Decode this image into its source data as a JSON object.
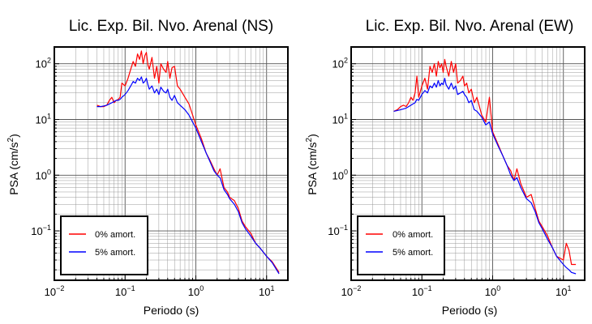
{
  "figure": {
    "description": "Two log-log pseudo-acceleration response spectra panels"
  },
  "chart_data": [
    {
      "type": "line",
      "title": "Lic. Exp. Bil. Nvo. Arenal (NS)",
      "xlabel": "Periodo (s)",
      "ylabel_main": "PSA (cm/s",
      "ylabel_sup": "2",
      "ylabel_close": ")",
      "xscale": "log",
      "yscale": "log",
      "xlim": [
        0.01,
        20
      ],
      "ylim": [
        0.013,
        200
      ],
      "grid": true,
      "legend_position": "bottom-left",
      "x_tick_labels": [
        {
          "base": "10",
          "exp": "−2"
        },
        {
          "base": "10",
          "exp": "−1"
        },
        {
          "base": "10",
          "exp": "0"
        },
        {
          "base": "10",
          "exp": "1"
        }
      ],
      "y_tick_labels": [
        {
          "base": "10",
          "exp": "−1"
        },
        {
          "base": "10",
          "exp": "0"
        },
        {
          "base": "10",
          "exp": "1"
        },
        {
          "base": "10",
          "exp": "2"
        }
      ],
      "series": [
        {
          "name": "0% amort.",
          "color": "#ff0000",
          "x": [
            0.04,
            0.045,
            0.05,
            0.055,
            0.06,
            0.065,
            0.07,
            0.075,
            0.08,
            0.085,
            0.09,
            0.1,
            0.11,
            0.12,
            0.13,
            0.14,
            0.15,
            0.16,
            0.17,
            0.18,
            0.19,
            0.2,
            0.21,
            0.22,
            0.24,
            0.26,
            0.28,
            0.3,
            0.32,
            0.35,
            0.38,
            0.4,
            0.43,
            0.46,
            0.5,
            0.55,
            0.6,
            0.7,
            0.8,
            0.9,
            1.0,
            1.2,
            1.4,
            1.6,
            1.8,
            2.0,
            2.2,
            2.5,
            2.8,
            3.0,
            3.5,
            4.0,
            4.5,
            5.0,
            6.0,
            7.0,
            8.0,
            10.0,
            12.0,
            15.0
          ],
          "y": [
            18,
            17,
            17,
            18,
            22,
            25,
            20,
            22,
            23,
            25,
            45,
            40,
            55,
            80,
            110,
            90,
            150,
            120,
            170,
            100,
            140,
            160,
            95,
            80,
            130,
            55,
            90,
            45,
            100,
            80,
            70,
            110,
            55,
            85,
            90,
            40,
            35,
            25,
            19,
            12,
            8,
            4.5,
            2.5,
            1.8,
            1.3,
            1.0,
            1.3,
            0.6,
            0.5,
            0.4,
            0.35,
            0.25,
            0.15,
            0.12,
            0.09,
            0.06,
            0.05,
            0.035,
            0.028,
            0.018
          ]
        },
        {
          "name": "5% amort.",
          "color": "#0000ff",
          "x": [
            0.04,
            0.045,
            0.05,
            0.055,
            0.06,
            0.065,
            0.07,
            0.075,
            0.08,
            0.085,
            0.09,
            0.1,
            0.11,
            0.12,
            0.13,
            0.14,
            0.15,
            0.16,
            0.17,
            0.18,
            0.19,
            0.2,
            0.21,
            0.22,
            0.24,
            0.26,
            0.28,
            0.3,
            0.32,
            0.35,
            0.38,
            0.4,
            0.43,
            0.46,
            0.5,
            0.55,
            0.6,
            0.7,
            0.8,
            0.9,
            1.0,
            1.2,
            1.4,
            1.6,
            1.8,
            2.0,
            2.2,
            2.5,
            2.8,
            3.0,
            3.5,
            4.0,
            4.5,
            5.0,
            6.0,
            7.0,
            8.0,
            10.0,
            12.0,
            15.0
          ],
          "y": [
            17,
            17,
            17.5,
            18,
            19,
            20,
            21,
            22,
            22,
            23,
            25,
            28,
            33,
            40,
            48,
            45,
            55,
            50,
            58,
            45,
            48,
            55,
            42,
            35,
            40,
            30,
            35,
            28,
            38,
            32,
            30,
            35,
            25,
            22,
            27,
            20,
            18,
            15,
            12,
            9,
            7,
            4,
            2.5,
            1.7,
            1.2,
            1.0,
            0.9,
            0.55,
            0.45,
            0.38,
            0.3,
            0.22,
            0.14,
            0.11,
            0.08,
            0.06,
            0.05,
            0.035,
            0.027,
            0.017
          ]
        }
      ]
    },
    {
      "type": "line",
      "title": "Lic. Exp. Bil. Nvo. Arenal (EW)",
      "xlabel": "Periodo (s)",
      "ylabel_main": "PSA (cm/s",
      "ylabel_sup": "2",
      "ylabel_close": ")",
      "xscale": "log",
      "yscale": "log",
      "xlim": [
        0.01,
        20
      ],
      "ylim": [
        0.013,
        200
      ],
      "grid": true,
      "legend_position": "bottom-left",
      "x_tick_labels": [
        {
          "base": "10",
          "exp": "−2"
        },
        {
          "base": "10",
          "exp": "−1"
        },
        {
          "base": "10",
          "exp": "0"
        },
        {
          "base": "10",
          "exp": "1"
        }
      ],
      "y_tick_labels": [
        {
          "base": "10",
          "exp": "−1"
        },
        {
          "base": "10",
          "exp": "0"
        },
        {
          "base": "10",
          "exp": "1"
        },
        {
          "base": "10",
          "exp": "2"
        }
      ],
      "series": [
        {
          "name": "0% amort.",
          "color": "#ff0000",
          "x": [
            0.04,
            0.045,
            0.05,
            0.055,
            0.06,
            0.065,
            0.07,
            0.075,
            0.08,
            0.085,
            0.09,
            0.1,
            0.11,
            0.12,
            0.13,
            0.14,
            0.15,
            0.16,
            0.17,
            0.18,
            0.19,
            0.2,
            0.21,
            0.22,
            0.24,
            0.26,
            0.28,
            0.3,
            0.32,
            0.35,
            0.38,
            0.4,
            0.43,
            0.46,
            0.5,
            0.55,
            0.6,
            0.7,
            0.8,
            0.9,
            1.0,
            1.2,
            1.4,
            1.6,
            1.8,
            2.0,
            2.2,
            2.5,
            2.8,
            3.0,
            3.5,
            4.0,
            4.5,
            5.0,
            6.0,
            7.0,
            8.0,
            10.0,
            11.0,
            12.0,
            13.0,
            15.0
          ],
          "y": [
            14,
            15,
            17,
            18,
            17,
            20,
            25,
            22,
            30,
            60,
            25,
            40,
            55,
            35,
            90,
            70,
            100,
            60,
            110,
            85,
            100,
            70,
            120,
            90,
            60,
            110,
            70,
            100,
            45,
            50,
            60,
            40,
            45,
            30,
            35,
            20,
            25,
            12,
            9,
            25,
            6,
            3.5,
            2.2,
            1.5,
            1.2,
            0.8,
            1.3,
            0.7,
            0.5,
            0.4,
            0.45,
            0.25,
            0.15,
            0.12,
            0.08,
            0.05,
            0.035,
            0.03,
            0.06,
            0.045,
            0.025,
            0.025
          ]
        },
        {
          "name": "5% amort.",
          "color": "#0000ff",
          "x": [
            0.04,
            0.045,
            0.05,
            0.055,
            0.06,
            0.065,
            0.07,
            0.075,
            0.08,
            0.085,
            0.09,
            0.1,
            0.11,
            0.12,
            0.13,
            0.14,
            0.15,
            0.16,
            0.17,
            0.18,
            0.19,
            0.2,
            0.21,
            0.22,
            0.24,
            0.26,
            0.28,
            0.3,
            0.32,
            0.35,
            0.38,
            0.4,
            0.43,
            0.46,
            0.5,
            0.55,
            0.6,
            0.7,
            0.8,
            0.9,
            1.0,
            1.2,
            1.4,
            1.6,
            1.8,
            2.0,
            2.2,
            2.5,
            2.8,
            3.0,
            3.5,
            4.0,
            4.5,
            5.0,
            6.0,
            7.0,
            8.0,
            10.0,
            11.0,
            12.0,
            13.0,
            15.0
          ],
          "y": [
            14,
            14.5,
            15,
            15.5,
            16,
            17,
            18,
            19,
            20,
            23,
            22,
            28,
            33,
            30,
            40,
            37,
            45,
            38,
            50,
            40,
            45,
            42,
            55,
            42,
            35,
            45,
            35,
            40,
            28,
            30,
            32,
            28,
            25,
            20,
            22,
            15,
            14,
            11,
            8,
            9,
            5.5,
            3.3,
            2.2,
            1.5,
            1.0,
            0.8,
            0.9,
            0.6,
            0.45,
            0.38,
            0.32,
            0.22,
            0.14,
            0.11,
            0.07,
            0.05,
            0.035,
            0.025,
            0.022,
            0.02,
            0.018,
            0.017
          ]
        }
      ]
    }
  ]
}
